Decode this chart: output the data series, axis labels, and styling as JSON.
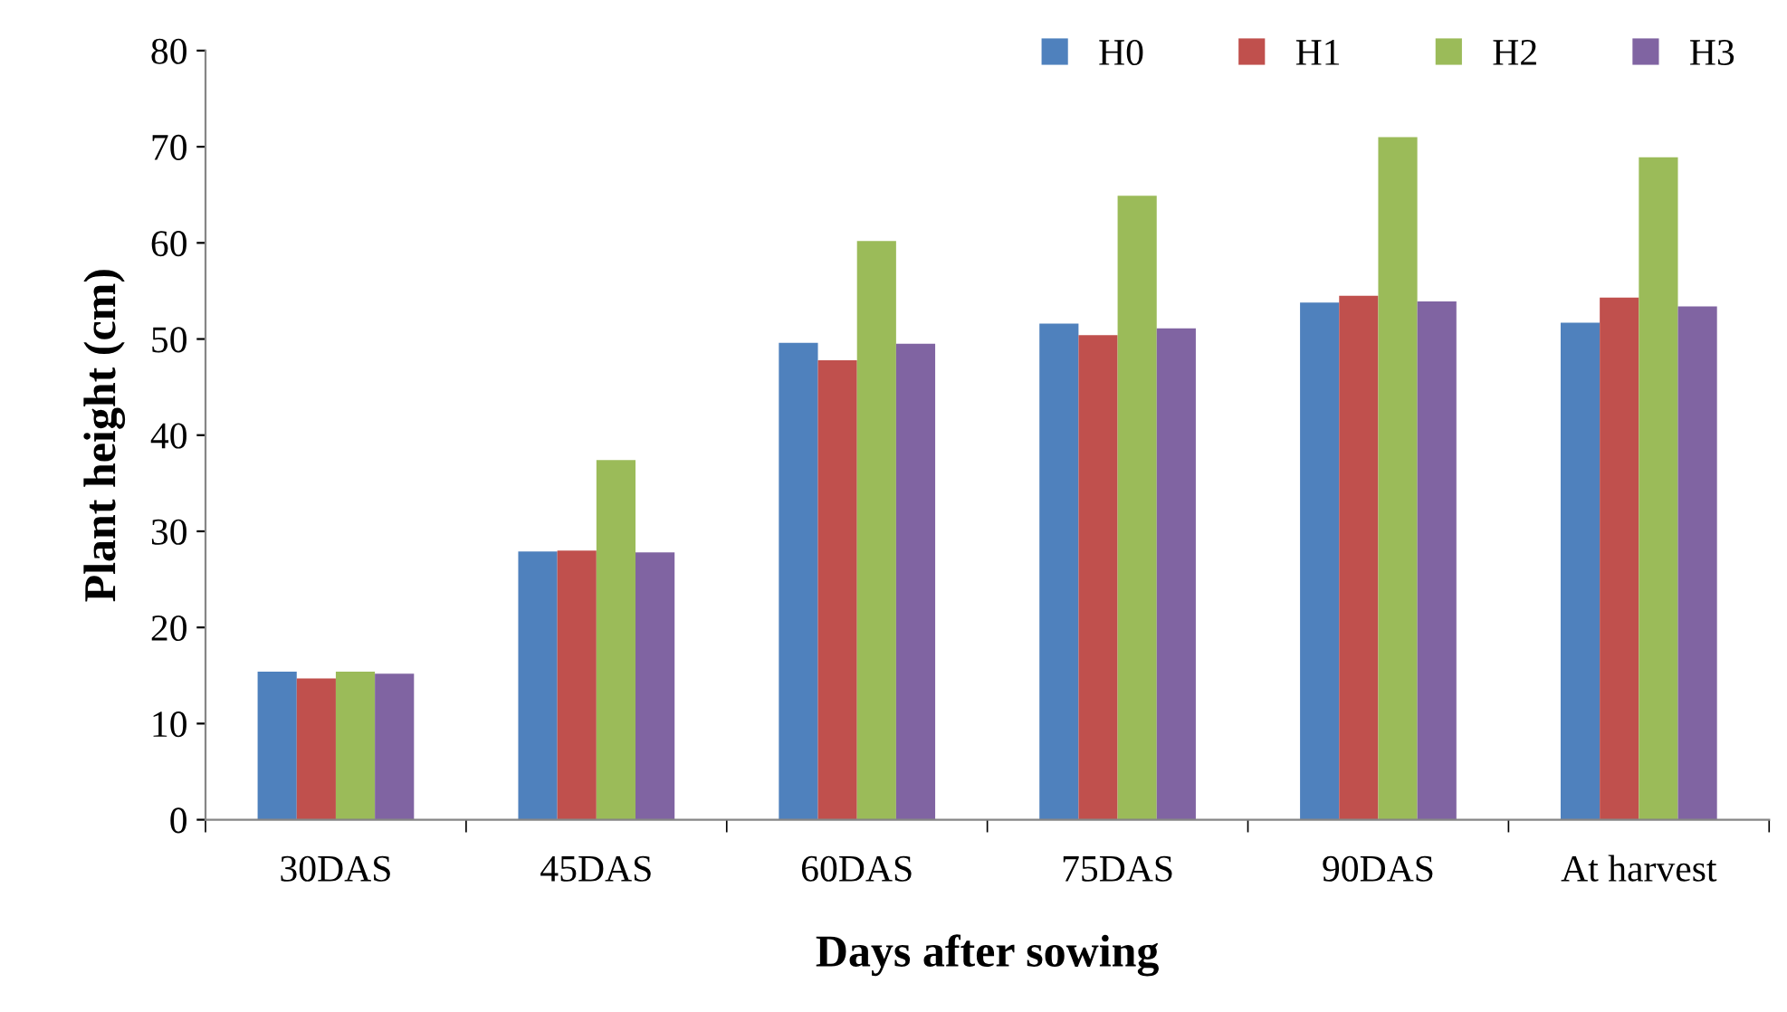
{
  "chart_data": {
    "type": "bar",
    "xlabel": "Days after sowing",
    "ylabel": "Plant height (cm)",
    "categories": [
      "30DAS",
      "45DAS",
      "60DAS",
      "75DAS",
      "90DAS",
      "At harvest"
    ],
    "series": [
      {
        "name": "H0",
        "color": "#4f81bd",
        "values": [
          15.4,
          27.9,
          49.6,
          51.6,
          53.8,
          51.7
        ]
      },
      {
        "name": "H1",
        "color": "#c0504d",
        "values": [
          14.7,
          28.0,
          47.8,
          50.4,
          54.5,
          54.3
        ]
      },
      {
        "name": "H2",
        "color": "#9bbb59",
        "values": [
          15.4,
          37.4,
          60.2,
          64.9,
          71.0,
          68.9
        ]
      },
      {
        "name": "H3",
        "color": "#8064a2",
        "values": [
          15.2,
          27.8,
          49.5,
          51.1,
          53.9,
          53.4
        ]
      }
    ],
    "ylim": [
      0,
      80
    ],
    "yticks": [
      0,
      10,
      20,
      30,
      40,
      50,
      60,
      70,
      80
    ],
    "grid": false,
    "legend": "top right"
  }
}
